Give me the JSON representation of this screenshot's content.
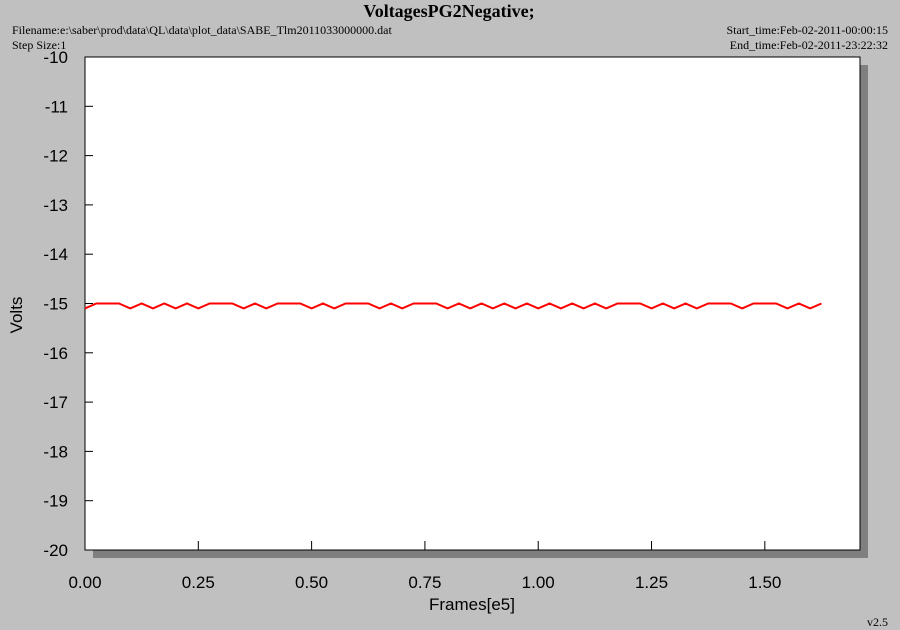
{
  "chart_data": {
    "type": "line",
    "title": "VoltagesPG2Negative;",
    "filename": "Filename:e:\\saber\\prod\\data\\QL\\data\\plot_data\\SABE_Tlm2011033000000.dat",
    "step_size": "Step Size:1",
    "start_time": "Start_time:Feb-02-2011-00:00:15",
    "end_time": "End_time:Feb-02-2011-23:22:32",
    "version": "v2.5",
    "xlabel": "Frames[e5]",
    "ylabel": "Volts",
    "xlim": [
      0,
      1.71
    ],
    "ylim": [
      -20,
      -10
    ],
    "xticks": [
      {
        "value": 0,
        "label": "0.00"
      },
      {
        "value": 0.25,
        "label": "0.25"
      },
      {
        "value": 0.5,
        "label": "0.50"
      },
      {
        "value": 0.75,
        "label": "0.75"
      },
      {
        "value": 1,
        "label": "1.00"
      },
      {
        "value": 1.25,
        "label": "1.25"
      },
      {
        "value": 1.5,
        "label": "1.50"
      }
    ],
    "yticks": [
      -10,
      -11,
      -12,
      -13,
      -14,
      -15,
      -16,
      -17,
      -18,
      -19,
      -20
    ],
    "series": [
      {
        "color": "#ff0000",
        "x": [
          0,
          0.025,
          0.05,
          0.075,
          0.1,
          0.125,
          0.15,
          0.175,
          0.2,
          0.225,
          0.25,
          0.275,
          0.3,
          0.325,
          0.35,
          0.375,
          0.4,
          0.425,
          0.45,
          0.475,
          0.5,
          0.525,
          0.55,
          0.575,
          0.6,
          0.625,
          0.65,
          0.675,
          0.7,
          0.725,
          0.75,
          0.775,
          0.8,
          0.825,
          0.85,
          0.875,
          0.9,
          0.925,
          0.95,
          0.975,
          1,
          1.025,
          1.05,
          1.075,
          1.1,
          1.125,
          1.15,
          1.175,
          1.2,
          1.225,
          1.25,
          1.275,
          1.3,
          1.325,
          1.35,
          1.375,
          1.4,
          1.425,
          1.45,
          1.475,
          1.5,
          1.525,
          1.55,
          1.575,
          1.6,
          1.625
        ],
        "values": [
          -15.1,
          -15,
          -15,
          -15,
          -15.1,
          -15,
          -15.1,
          -15,
          -15.1,
          -15,
          -15.1,
          -15,
          -15,
          -15,
          -15.1,
          -15,
          -15.1,
          -15,
          -15,
          -15,
          -15.1,
          -15,
          -15.1,
          -15,
          -15,
          -15,
          -15.1,
          -15,
          -15.1,
          -15,
          -15,
          -15,
          -15.1,
          -15,
          -15.1,
          -15,
          -15.1,
          -15,
          -15.1,
          -15,
          -15.1,
          -15,
          -15.1,
          -15,
          -15.1,
          -15,
          -15.1,
          -15,
          -15,
          -15,
          -15.1,
          -15,
          -15.1,
          -15,
          -15.1,
          -15,
          -15,
          -15,
          -15.1,
          -15,
          -15,
          -15,
          -15.1,
          -15,
          -15.1,
          -15
        ]
      }
    ]
  }
}
